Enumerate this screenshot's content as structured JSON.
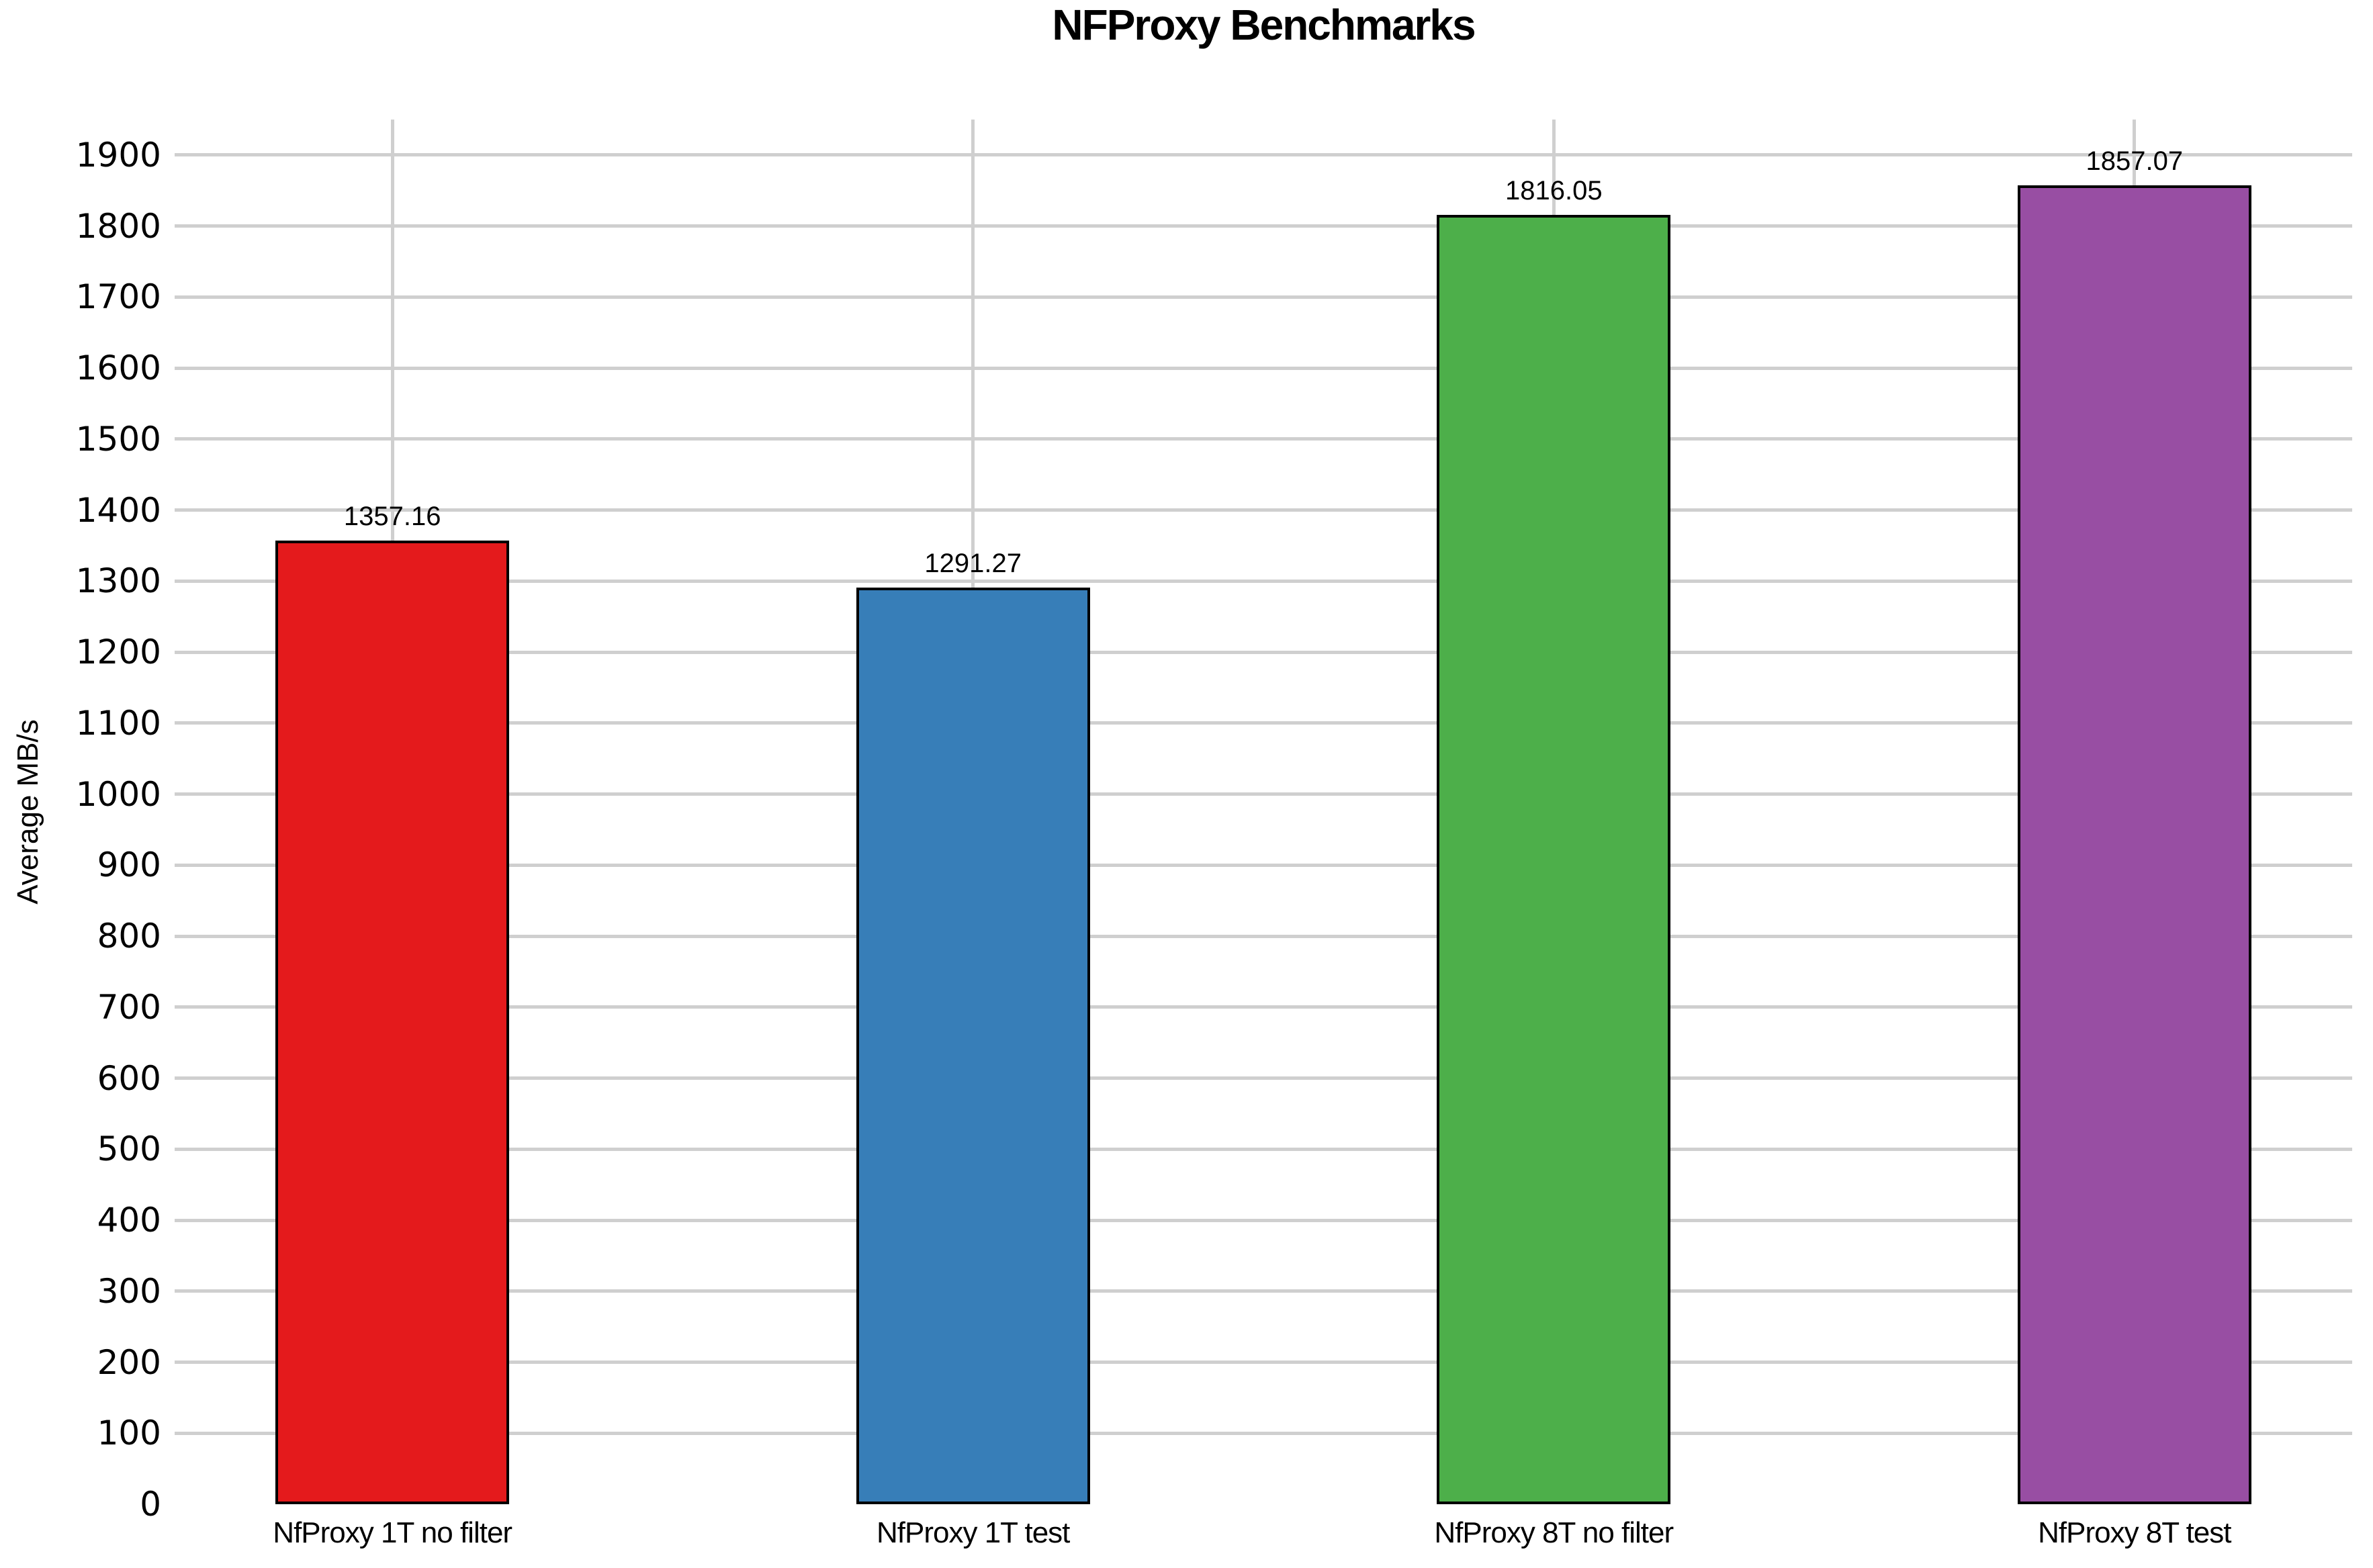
{
  "title": "NFProxy Benchmarks",
  "chart_data": {
    "type": "bar",
    "title": "NFProxy Benchmarks",
    "xlabel": "",
    "ylabel": "Average MB/s",
    "categories": [
      "NfProxy 1T no filter",
      "NfProxy 1T test",
      "NfProxy 8T no filter",
      "NfProxy 8T test"
    ],
    "values": [
      1357.16,
      1291.27,
      1816.05,
      1857.07
    ],
    "value_labels": [
      "1357.16",
      "1291.27",
      "1816.05",
      "1857.07"
    ],
    "bar_colors": [
      "#e41a1c",
      "#377eb8",
      "#4daf4a",
      "#984ea3"
    ],
    "bar_border_color": "#000000",
    "ylim": [
      0,
      1950
    ],
    "ytick_min": 0,
    "ytick_max": 1900,
    "ytick_step": 100,
    "grid": true,
    "gridline_color": "#cfcfcf",
    "background_color": "#ffffff",
    "legend": "none"
  }
}
